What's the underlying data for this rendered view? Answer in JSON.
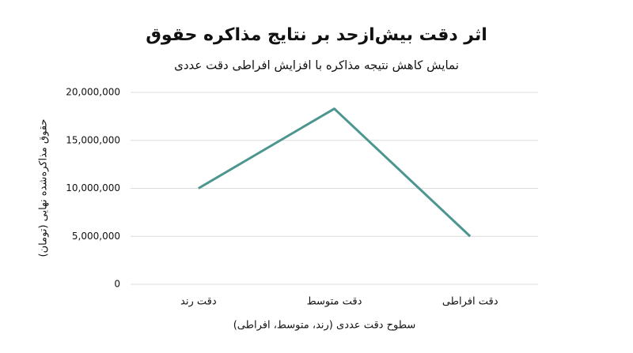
{
  "chart_data": {
    "type": "line",
    "title": "اثر دقت بیش‌ازحد بر نتایج مذاکره حقوق",
    "subtitle": "نمایش کاهش نتیجه مذاکره با افزایش افراطی دقت عددی",
    "xlabel": "سطوح دقت عددی (رند، متوسط، افراطی)",
    "ylabel": "حقوق مذاکره‌شده نهایی (تومان)",
    "categories": [
      "دقت رند",
      "دقت متوسط",
      "دقت افراطی"
    ],
    "values": [
      10000000,
      18300000,
      5000000
    ],
    "color": "#4d9690",
    "ylim": [
      0,
      20000000
    ],
    "yticks": [
      0,
      {
        "value": 5000000,
        "label": "5,000,000"
      },
      {
        "value": 10000000,
        "label": "10,000,000"
      },
      {
        "value": 15000000,
        "label": "15,000,000"
      },
      {
        "value": 20000000,
        "label": "20,000,000"
      }
    ],
    "grid": true
  }
}
